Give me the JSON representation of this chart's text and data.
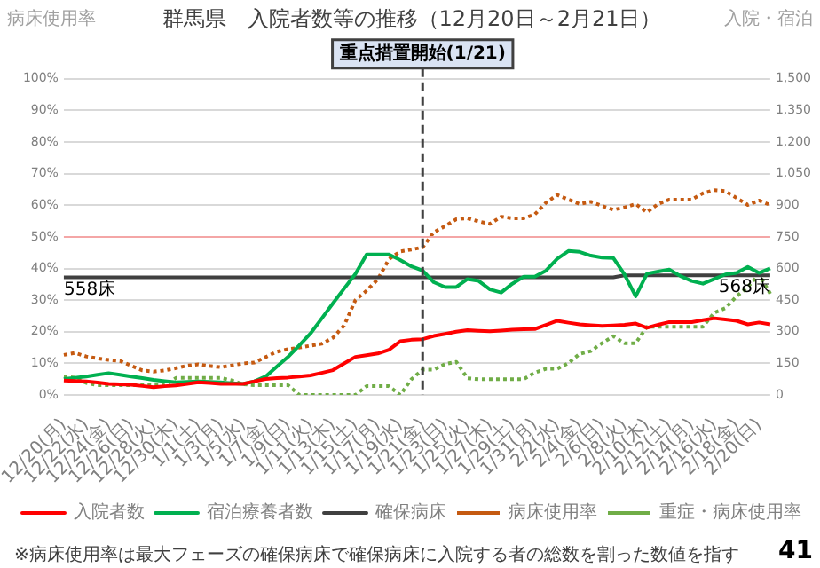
{
  "chart_data": {
    "type": "line",
    "title": "群馬県　入院者数等の推移（12月20日～2月21日）",
    "ylabel": "病床使用率",
    "y2label": "入院・宿泊",
    "categories": [
      "12/20(月)",
      null,
      "12/22(水)",
      null,
      "12/24(金)",
      null,
      "12/26(日)",
      null,
      "12/28(火)",
      null,
      "12/30(木)",
      null,
      "1/1(土)",
      null,
      "1/3(月)",
      null,
      "1/5(水)",
      null,
      "1/7(金)",
      null,
      "1/9(日)",
      null,
      "1/11(火)",
      null,
      "1/13(木)",
      null,
      "1/15(土)",
      null,
      "1/17(月)",
      null,
      "1/19(水)",
      null,
      "1/21(金)",
      null,
      "1/23(日)",
      null,
      "1/25(火)",
      null,
      "1/27(木)",
      null,
      "1/29(土)",
      null,
      "1/31(月)",
      null,
      "2/2(水)",
      null,
      "2/4(金)",
      null,
      "2/6(日)",
      null,
      "2/8(火)",
      null,
      "2/10(木)",
      null,
      "2/12(土)",
      null,
      "2/14(月)",
      null,
      "2/16(水)",
      null,
      "2/18(金)",
      null,
      "2/20(日)",
      null
    ],
    "series": [
      {
        "name": "入院者数",
        "color": "#ff0000",
        "axis": "y2",
        "line_style": "solid",
        "values": [
          69,
          67,
          65,
          59,
          53,
          51,
          49,
          43,
          37,
          42,
          46,
          53,
          60,
          57,
          53,
          53,
          53,
          65,
          76,
          80,
          83,
          88,
          93,
          105,
          118,
          150,
          181,
          189,
          197,
          215,
          255,
          262,
          265,
          280,
          290,
          300,
          308,
          305,
          302,
          306,
          310,
          312,
          313,
          332,
          352,
          343,
          335,
          331,
          328,
          330,
          333,
          339,
          319,
          333,
          346,
          346,
          346,
          355,
          364,
          358,
          352,
          335,
          344,
          335
        ]
      },
      {
        "name": "宿泊療養者数",
        "color": "#00b050",
        "axis": "y2",
        "line_style": "solid",
        "values": [
          76,
          82,
          88,
          96,
          104,
          96,
          88,
          80,
          72,
          66,
          60,
          62,
          65,
          62,
          60,
          56,
          53,
          65,
          88,
          135,
          181,
          236,
          292,
          363,
          435,
          505,
          574,
          667,
          667,
          667,
          640,
          610,
          590,
          535,
          512,
          512,
          550,
          541,
          501,
          486,
          528,
          561,
          561,
          590,
          646,
          683,
          679,
          661,
          652,
          650,
          572,
          468,
          575,
          586,
          595,
          564,
          541,
          528,
          550,
          572,
          579,
          608,
          579,
          601
        ]
      },
      {
        "name": "確保病床",
        "color": "#404040",
        "axis": "y2",
        "line_style": "solid",
        "values": [
          558,
          558,
          558,
          558,
          558,
          558,
          558,
          558,
          558,
          558,
          558,
          558,
          558,
          558,
          558,
          558,
          558,
          558,
          558,
          558,
          558,
          558,
          558,
          558,
          558,
          558,
          558,
          558,
          558,
          558,
          558,
          558,
          558,
          558,
          558,
          558,
          558,
          558,
          558,
          558,
          558,
          558,
          558,
          558,
          558,
          558,
          558,
          558,
          558,
          558,
          568,
          568,
          568,
          568,
          568,
          568,
          568,
          568,
          568,
          568,
          568,
          568,
          568,
          568
        ]
      },
      {
        "name": "病床使用率",
        "color": "#c55a11",
        "axis": "y",
        "line_style": "dotted",
        "values": [
          12.7,
          13.3,
          12.2,
          11.6,
          11.1,
          10.8,
          9.3,
          7.8,
          7.4,
          7.8,
          8.5,
          9.3,
          9.7,
          9.2,
          8.8,
          9.4,
          10.0,
          10.3,
          12.0,
          13.7,
          14.5,
          15.0,
          15.6,
          16.2,
          18.1,
          22.0,
          30.0,
          33.0,
          36.6,
          43.0,
          45.4,
          46.0,
          46.7,
          51.5,
          53.4,
          55.6,
          55.9,
          54.9,
          54.1,
          56.4,
          55.9,
          55.9,
          57.1,
          60.8,
          63.3,
          61.8,
          60.4,
          61.1,
          59.8,
          58.6,
          59.3,
          60.4,
          57.8,
          60.4,
          61.8,
          61.8,
          61.8,
          63.8,
          64.8,
          64.5,
          62.3,
          60.1,
          61.5,
          60.1
        ]
      },
      {
        "name": "重症・病床使用率",
        "color": "#70ad47",
        "axis": "y",
        "line_style": "dotted",
        "values": [
          5.8,
          5.5,
          3.8,
          3.1,
          3.1,
          3.1,
          3.1,
          3.1,
          3.1,
          3.1,
          5.4,
          5.4,
          5.4,
          5.4,
          5.4,
          4.6,
          3.4,
          3.1,
          3.1,
          3.1,
          3.1,
          0,
          0,
          0,
          0,
          0,
          0,
          2.8,
          2.8,
          2.8,
          0,
          5.0,
          8.0,
          8.0,
          9.8,
          10.5,
          5.3,
          5.0,
          5.0,
          5.0,
          5.0,
          5.0,
          7.1,
          8.3,
          8.3,
          10.1,
          13.0,
          13.9,
          16.4,
          18.6,
          16.4,
          16.4,
          21.6,
          21.6,
          21.6,
          21.6,
          21.6,
          21.6,
          26.0,
          27.5,
          31.2,
          34.2,
          38.2,
          32.0
        ]
      }
    ],
    "ylim": [
      0,
      100
    ],
    "yticks": [
      {
        "value": 0,
        "label": "0%"
      },
      {
        "value": 10,
        "label": "10%"
      },
      {
        "value": 20,
        "label": "20%"
      },
      {
        "value": 30,
        "label": "30%"
      },
      {
        "value": 40,
        "label": "40%"
      },
      {
        "value": 50,
        "label": "50%"
      },
      {
        "value": 60,
        "label": "60%"
      },
      {
        "value": 70,
        "label": "70%"
      },
      {
        "value": 80,
        "label": "80%"
      },
      {
        "value": 90,
        "label": "90%"
      },
      {
        "value": 100,
        "label": "100%"
      }
    ],
    "y2lim": [
      0,
      1500
    ],
    "y2ticks": [
      0,
      150,
      300,
      450,
      600,
      750,
      900,
      {
        "value": 1050,
        "label": "1,050"
      },
      {
        "value": 1200,
        "label": "1,200"
      },
      {
        "value": 1350,
        "label": "1,350"
      },
      {
        "value": 1500,
        "label": "1,500"
      }
    ],
    "ref_lines": [
      {
        "axis": "x",
        "value": "1/21(金)",
        "label": "重点措置開始(1/21)",
        "color": "#404040",
        "line_style": "dashed"
      },
      {
        "axis": "y",
        "value": 50,
        "label": null,
        "color": "#f4a6a6",
        "line_style": "solid"
      }
    ],
    "annotations": [
      {
        "text": "558床",
        "x": "12/20(月)",
        "y": 37.2
      },
      {
        "text": "568床",
        "y": 37.9
      },
      "※病床使用率は最大フェーズの確保病床で確保病床に入院する者の総数を割った数値を指す",
      "41"
    ],
    "grid": "y",
    "legend": "bottom",
    "marker": "none"
  }
}
